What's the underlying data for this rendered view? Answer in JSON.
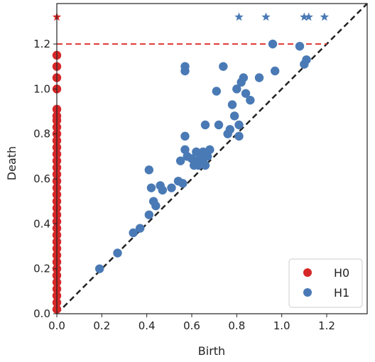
{
  "chart_data": {
    "type": "scatter",
    "title": "",
    "xlabel": "Birth",
    "ylabel": "Death",
    "xlim": [
      0.0,
      1.38
    ],
    "ylim": [
      0.0,
      1.38
    ],
    "xticks": [
      "0.0",
      "0.2",
      "0.4",
      "0.6",
      "0.8",
      "1.0",
      "1.2"
    ],
    "yticks": [
      "0.0",
      "0.2",
      "0.4",
      "0.6",
      "0.8",
      "1.0",
      "1.2"
    ],
    "grid": false,
    "legend_position": "bottom-right",
    "diagonal": true,
    "infinity_level": 1.2,
    "infinity_marker_y": 1.32,
    "series": [
      {
        "name": "H0",
        "color": "#d62728",
        "marker": "circle",
        "points": [
          [
            0,
            0.02
          ],
          [
            0,
            0.05
          ],
          [
            0,
            0.08
          ],
          [
            0,
            0.11
          ],
          [
            0,
            0.14
          ],
          [
            0,
            0.17
          ],
          [
            0,
            0.2
          ],
          [
            0,
            0.23
          ],
          [
            0,
            0.26
          ],
          [
            0,
            0.29
          ],
          [
            0,
            0.32
          ],
          [
            0,
            0.35
          ],
          [
            0,
            0.38
          ],
          [
            0,
            0.41
          ],
          [
            0,
            0.44
          ],
          [
            0,
            0.47
          ],
          [
            0,
            0.5
          ],
          [
            0,
            0.53
          ],
          [
            0,
            0.56
          ],
          [
            0,
            0.59
          ],
          [
            0,
            0.62
          ],
          [
            0,
            0.65
          ],
          [
            0,
            0.68
          ],
          [
            0,
            0.71
          ],
          [
            0,
            0.74
          ],
          [
            0,
            0.77
          ],
          [
            0,
            0.8
          ],
          [
            0,
            0.83
          ],
          [
            0,
            0.86
          ],
          [
            0,
            0.88
          ],
          [
            0,
            0.91
          ],
          [
            0,
            1.0
          ],
          [
            0,
            1.05
          ],
          [
            0,
            1.1
          ],
          [
            0,
            1.15
          ]
        ],
        "infinite_births": [
          0.0
        ]
      },
      {
        "name": "H1",
        "color": "#4a7ab5",
        "marker": "circle",
        "points": [
          [
            0.19,
            0.2
          ],
          [
            0.27,
            0.27
          ],
          [
            0.34,
            0.36
          ],
          [
            0.37,
            0.38
          ],
          [
            0.41,
            0.44
          ],
          [
            0.41,
            0.64
          ],
          [
            0.42,
            0.56
          ],
          [
            0.43,
            0.5
          ],
          [
            0.44,
            0.48
          ],
          [
            0.46,
            0.57
          ],
          [
            0.47,
            0.55
          ],
          [
            0.51,
            0.56
          ],
          [
            0.54,
            0.59
          ],
          [
            0.55,
            0.68
          ],
          [
            0.56,
            0.58
          ],
          [
            0.57,
            0.79
          ],
          [
            0.57,
            0.73
          ],
          [
            0.57,
            1.08
          ],
          [
            0.57,
            1.1
          ],
          [
            0.58,
            0.7
          ],
          [
            0.6,
            0.69
          ],
          [
            0.61,
            0.66
          ],
          [
            0.62,
            0.72
          ],
          [
            0.62,
            0.68
          ],
          [
            0.63,
            0.66
          ],
          [
            0.64,
            0.7
          ],
          [
            0.65,
            0.72
          ],
          [
            0.65,
            0.68
          ],
          [
            0.66,
            0.66
          ],
          [
            0.66,
            0.84
          ],
          [
            0.67,
            0.7
          ],
          [
            0.68,
            0.73
          ],
          [
            0.71,
            0.99
          ],
          [
            0.72,
            0.84
          ],
          [
            0.74,
            1.1
          ],
          [
            0.76,
            0.8
          ],
          [
            0.77,
            0.82
          ],
          [
            0.78,
            0.93
          ],
          [
            0.79,
            0.88
          ],
          [
            0.8,
            1.0
          ],
          [
            0.81,
            0.84
          ],
          [
            0.81,
            0.79
          ],
          [
            0.82,
            1.03
          ],
          [
            0.83,
            1.05
          ],
          [
            0.84,
            0.98
          ],
          [
            0.86,
            0.95
          ],
          [
            0.9,
            1.05
          ],
          [
            0.96,
            1.2
          ],
          [
            0.97,
            1.08
          ],
          [
            1.08,
            1.19
          ],
          [
            1.1,
            1.11
          ],
          [
            1.11,
            1.13
          ]
        ],
        "infinite_births": [
          0.81,
          0.93,
          1.1,
          1.12,
          1.19
        ]
      }
    ]
  }
}
